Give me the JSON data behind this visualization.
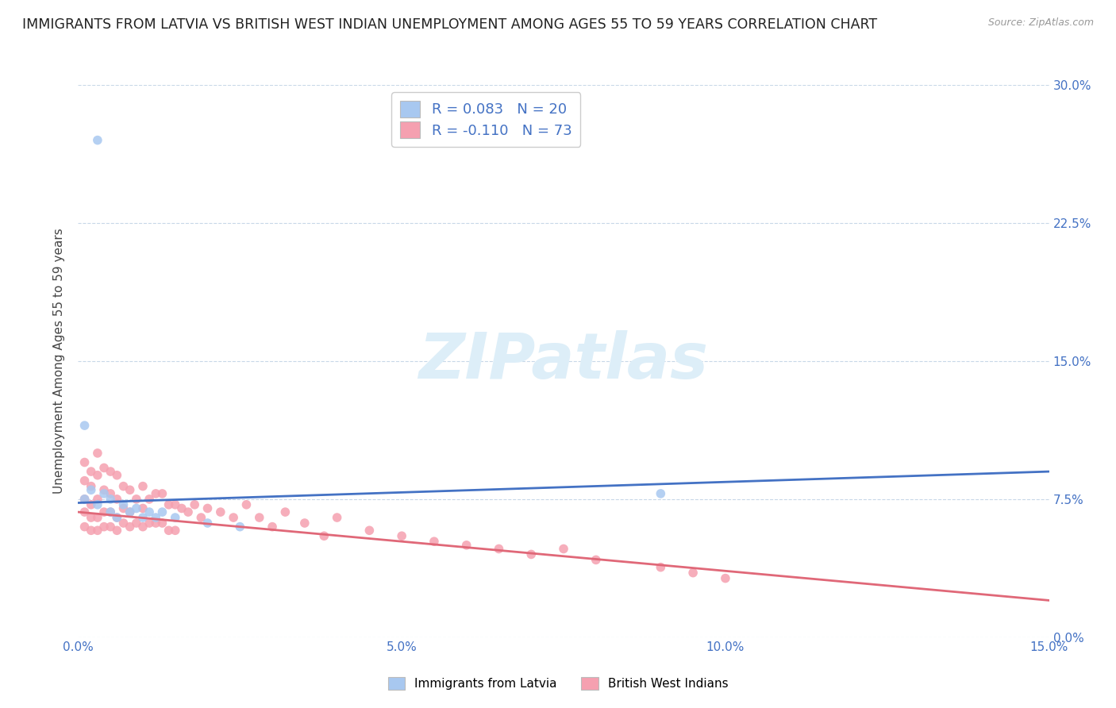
{
  "title": "IMMIGRANTS FROM LATVIA VS BRITISH WEST INDIAN UNEMPLOYMENT AMONG AGES 55 TO 59 YEARS CORRELATION CHART",
  "source": "Source: ZipAtlas.com",
  "ylabel": "Unemployment Among Ages 55 to 59 years",
  "xlim": [
    0.0,
    0.15
  ],
  "ylim": [
    0.0,
    0.3
  ],
  "xticks": [
    0.0,
    0.05,
    0.1,
    0.15
  ],
  "xtick_labels": [
    "0.0%",
    "5.0%",
    "10.0%",
    "15.0%"
  ],
  "yticks": [
    0.0,
    0.075,
    0.15,
    0.225,
    0.3
  ],
  "ytick_labels": [
    "0.0%",
    "7.5%",
    "15.0%",
    "22.5%",
    "30.0%"
  ],
  "latvia_R": 0.083,
  "latvia_N": 20,
  "bwi_R": -0.11,
  "bwi_N": 73,
  "latvia_color": "#a8c8f0",
  "bwi_color": "#f5a0b0",
  "latvia_line_color": "#4472c4",
  "bwi_line_color": "#e06878",
  "grid_color": "#c8d8e8",
  "watermark_color": "#ddeef8",
  "background_color": "#ffffff",
  "title_fontsize": 12.5,
  "axis_label_fontsize": 11,
  "tick_fontsize": 11,
  "legend_fontsize": 13,
  "latvia_scatter_x": [
    0.001,
    0.002,
    0.003,
    0.004,
    0.005,
    0.005,
    0.006,
    0.007,
    0.008,
    0.009,
    0.01,
    0.011,
    0.012,
    0.013,
    0.015,
    0.02,
    0.025,
    0.001,
    0.09,
    0.003
  ],
  "latvia_scatter_y": [
    0.075,
    0.08,
    0.072,
    0.078,
    0.068,
    0.075,
    0.065,
    0.072,
    0.068,
    0.07,
    0.065,
    0.068,
    0.065,
    0.068,
    0.065,
    0.062,
    0.06,
    0.115,
    0.078,
    0.27
  ],
  "bwi_scatter_x": [
    0.001,
    0.001,
    0.001,
    0.001,
    0.001,
    0.002,
    0.002,
    0.002,
    0.002,
    0.002,
    0.003,
    0.003,
    0.003,
    0.003,
    0.003,
    0.004,
    0.004,
    0.004,
    0.004,
    0.005,
    0.005,
    0.005,
    0.005,
    0.006,
    0.006,
    0.006,
    0.006,
    0.007,
    0.007,
    0.007,
    0.008,
    0.008,
    0.008,
    0.009,
    0.009,
    0.01,
    0.01,
    0.01,
    0.011,
    0.011,
    0.012,
    0.012,
    0.013,
    0.013,
    0.014,
    0.014,
    0.015,
    0.015,
    0.016,
    0.017,
    0.018,
    0.019,
    0.02,
    0.022,
    0.024,
    0.026,
    0.028,
    0.03,
    0.032,
    0.035,
    0.038,
    0.04,
    0.045,
    0.05,
    0.055,
    0.06,
    0.065,
    0.07,
    0.075,
    0.08,
    0.09,
    0.095,
    0.1
  ],
  "bwi_scatter_y": [
    0.095,
    0.085,
    0.075,
    0.068,
    0.06,
    0.09,
    0.082,
    0.072,
    0.065,
    0.058,
    0.1,
    0.088,
    0.075,
    0.065,
    0.058,
    0.092,
    0.08,
    0.068,
    0.06,
    0.09,
    0.078,
    0.068,
    0.06,
    0.088,
    0.075,
    0.065,
    0.058,
    0.082,
    0.07,
    0.062,
    0.08,
    0.068,
    0.06,
    0.075,
    0.062,
    0.082,
    0.07,
    0.06,
    0.075,
    0.062,
    0.078,
    0.062,
    0.078,
    0.062,
    0.072,
    0.058,
    0.072,
    0.058,
    0.07,
    0.068,
    0.072,
    0.065,
    0.07,
    0.068,
    0.065,
    0.072,
    0.065,
    0.06,
    0.068,
    0.062,
    0.055,
    0.065,
    0.058,
    0.055,
    0.052,
    0.05,
    0.048,
    0.045,
    0.048,
    0.042,
    0.038,
    0.035,
    0.032
  ],
  "latvia_line_x0": 0.0,
  "latvia_line_y0": 0.073,
  "latvia_line_x1": 0.15,
  "latvia_line_y1": 0.09,
  "bwi_line_x0": 0.0,
  "bwi_line_y0": 0.068,
  "bwi_line_x1": 0.15,
  "bwi_line_y1": 0.02
}
